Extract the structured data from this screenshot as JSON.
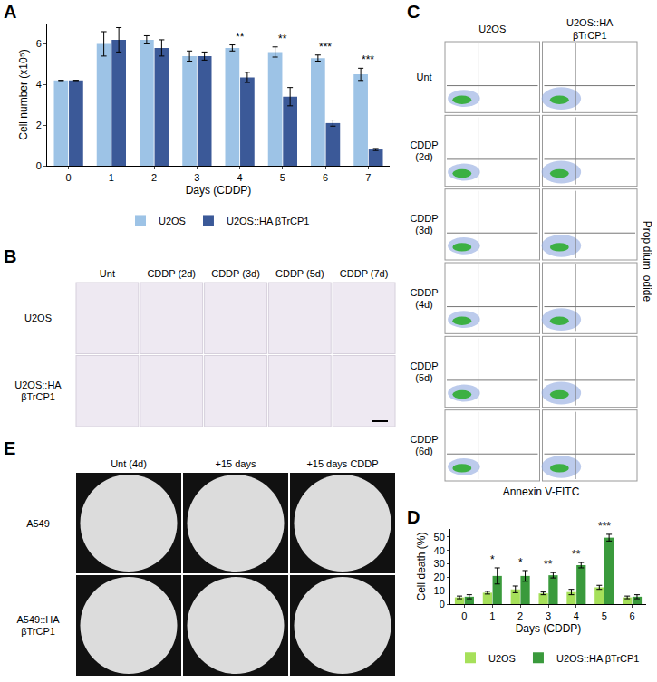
{
  "chart_data": [
    {
      "panel": "A",
      "type": "bar",
      "categories": [
        "0",
        "1",
        "2",
        "3",
        "4",
        "5",
        "6",
        "7"
      ],
      "series": [
        {
          "name": "U2OS",
          "color": "#9dc3e6",
          "values": [
            4.2,
            6.0,
            6.2,
            5.4,
            5.8,
            5.6,
            5.3,
            4.5
          ],
          "errors": [
            0,
            0.6,
            0.2,
            0.25,
            0.15,
            0.25,
            0.15,
            0.3
          ]
        },
        {
          "name": "U2OS::HA βTrCP1",
          "color": "#3b5998",
          "values": [
            4.2,
            6.2,
            5.8,
            5.4,
            4.35,
            3.4,
            2.1,
            0.8
          ],
          "errors": [
            0,
            0.6,
            0.4,
            0.2,
            0.25,
            0.45,
            0.15,
            0.05
          ]
        }
      ],
      "xlabel": "Days (CDDP)",
      "ylabel": "Cell number (x10⁵)",
      "ylim": [
        0,
        7
      ],
      "yticks": [
        0,
        2,
        4,
        6
      ],
      "legend": "bottom",
      "annotations": [
        {
          "category": "4",
          "text": "**"
        },
        {
          "category": "5",
          "text": "**"
        },
        {
          "category": "6",
          "text": "***"
        },
        {
          "category": "7",
          "text": "***"
        }
      ]
    },
    {
      "panel": "D",
      "type": "bar",
      "categories": [
        "0",
        "1",
        "2",
        "3",
        "4",
        "5",
        "6"
      ],
      "series": [
        {
          "name": "U2OS",
          "color": "#a6e05a",
          "values": [
            5,
            8.5,
            11,
            8,
            9,
            12.5,
            5
          ],
          "errors": [
            1,
            1,
            2.5,
            1,
            2,
            1.5,
            1
          ]
        },
        {
          "name": "U2OS::HA βTrCP1",
          "color": "#3a9a3c",
          "values": [
            5.5,
            21,
            21,
            21.5,
            29,
            49.5,
            5.5
          ],
          "errors": [
            1.5,
            6,
            4,
            2,
            2,
            2.5,
            1.5
          ]
        }
      ],
      "xlabel": "Days (CDDP)",
      "ylabel": "Cell death (%)",
      "ylim": [
        0,
        56
      ],
      "yticks": [
        0,
        10,
        20,
        30,
        40,
        50
      ],
      "legend": "bottom",
      "annotations": [
        {
          "category": "1",
          "text": "*"
        },
        {
          "category": "2",
          "text": "*"
        },
        {
          "category": "3",
          "text": "**"
        },
        {
          "category": "4",
          "text": "**"
        },
        {
          "category": "5",
          "text": "***"
        }
      ]
    }
  ],
  "image_panels": [
    {
      "panel": "B",
      "rows": [
        "U2OS",
        "U2OS::HA βTrCP1"
      ],
      "columns": [
        "Unt",
        "CDDP (2d)",
        "CDDP (3d)",
        "CDDP (5d)",
        "CDDP (7d)"
      ]
    },
    {
      "panel": "C",
      "rows": [
        "Unt",
        "CDDP (2d)",
        "CDDP (3d)",
        "CDDP (4d)",
        "CDDP (5d)",
        "CDDP (6d)"
      ],
      "columns": [
        "U2OS",
        "U2OS::HA βTrCP1"
      ],
      "xlabel": "Annexin V-FITC",
      "ylabel": "Propidium iodide"
    },
    {
      "panel": "E",
      "rows": [
        "A549",
        "A549::HA βTrCP1"
      ],
      "columns": [
        "Unt (4d)",
        "+15 days",
        "+15 days CDDP"
      ]
    }
  ]
}
